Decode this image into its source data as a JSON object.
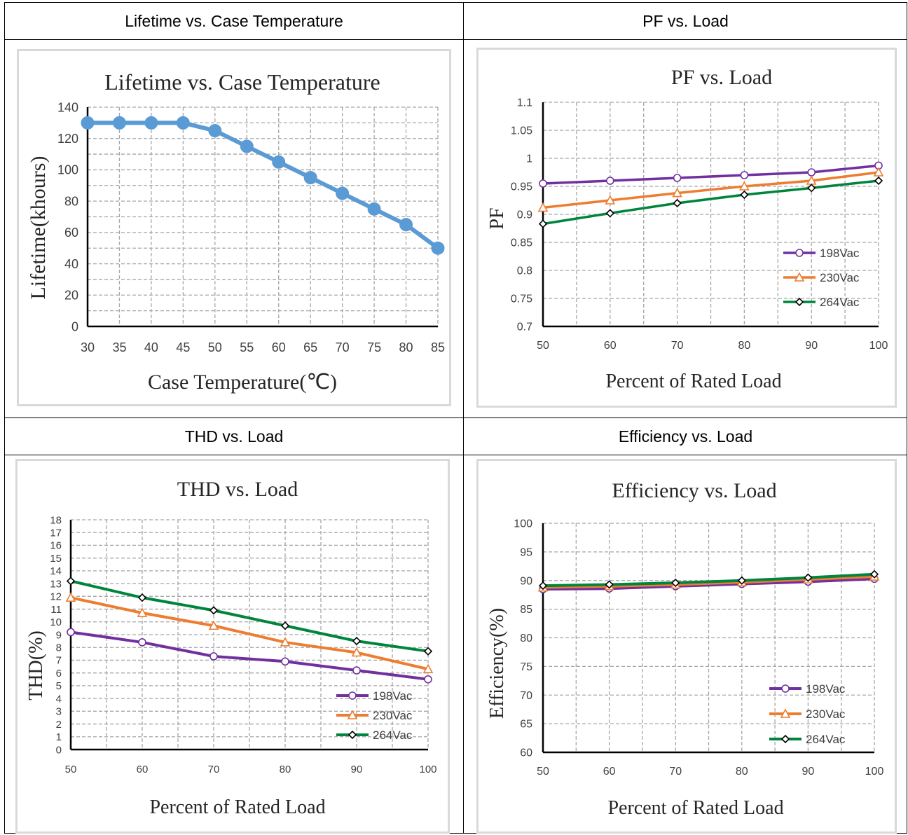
{
  "cells": [
    {
      "title": "Lifetime vs. Case Temperature"
    },
    {
      "title": "PF vs. Load"
    },
    {
      "title": "THD vs. Load"
    },
    {
      "title": "Efficiency vs. Load"
    }
  ],
  "chart_data": [
    {
      "type": "line",
      "title": "Lifetime vs. Case Temperature",
      "xlabel": "Case Temperature(℃)",
      "ylabel": "Lifetime(khours)",
      "x": [
        30,
        35,
        40,
        45,
        50,
        55,
        60,
        65,
        70,
        75,
        80,
        85
      ],
      "xlim": [
        30,
        85
      ],
      "ylim": [
        0,
        140
      ],
      "yticks": [
        0,
        20,
        40,
        60,
        80,
        100,
        120,
        140
      ],
      "grid": true,
      "series": [
        {
          "values": [
            130,
            130,
            130,
            130,
            125,
            115,
            105,
            95,
            85,
            75,
            65,
            50
          ],
          "color": "#5b9bd5",
          "marker": "filled-circle"
        }
      ]
    },
    {
      "type": "line",
      "title": "PF vs. Load",
      "xlabel": "Percent of Rated Load",
      "ylabel": "PF",
      "x": [
        50,
        60,
        70,
        80,
        90,
        100
      ],
      "xlim": [
        50,
        100
      ],
      "ylim": [
        0.7,
        1.1
      ],
      "yticks": [
        0.7,
        0.75,
        0.8,
        0.85,
        0.9,
        0.95,
        1,
        1.05,
        1.1
      ],
      "grid": true,
      "legend": "bottom-right",
      "series": [
        {
          "name": "198Vac",
          "values": [
            0.955,
            0.96,
            0.965,
            0.97,
            0.975,
            0.987
          ],
          "color": "#7030a0",
          "marker": "circle"
        },
        {
          "name": "230Vac",
          "values": [
            0.912,
            0.925,
            0.938,
            0.95,
            0.96,
            0.975
          ],
          "color": "#ed7d31",
          "marker": "triangle"
        },
        {
          "name": "264Vac",
          "values": [
            0.883,
            0.902,
            0.92,
            0.935,
            0.947,
            0.96
          ],
          "color": "#00853e",
          "marker": "diamond"
        }
      ]
    },
    {
      "type": "line",
      "title": "THD vs. Load",
      "xlabel": "Percent of Rated Load",
      "ylabel": "THD(%)",
      "x": [
        50,
        60,
        70,
        80,
        90,
        100
      ],
      "xlim": [
        50,
        100
      ],
      "ylim": [
        0,
        18
      ],
      "yticks": [
        0,
        1,
        2,
        3,
        4,
        5,
        6,
        7,
        8,
        9,
        10,
        11,
        12,
        13,
        14,
        15,
        16,
        17,
        18
      ],
      "grid": true,
      "legend": "bottom-right",
      "series": [
        {
          "name": "198Vac",
          "values": [
            9.2,
            8.4,
            7.3,
            6.9,
            6.2,
            5.5
          ],
          "color": "#7030a0",
          "marker": "circle"
        },
        {
          "name": "230Vac",
          "values": [
            11.9,
            10.7,
            9.7,
            8.4,
            7.6,
            6.3
          ],
          "color": "#ed7d31",
          "marker": "triangle"
        },
        {
          "name": "264Vac",
          "values": [
            13.2,
            11.9,
            10.9,
            9.7,
            8.5,
            7.7
          ],
          "color": "#00853e",
          "marker": "diamond"
        }
      ]
    },
    {
      "type": "line",
      "title": "Efficiency vs. Load",
      "xlabel": "Percent of Rated Load",
      "ylabel": "Efficiency(%)",
      "x": [
        50,
        60,
        70,
        80,
        90,
        100
      ],
      "xlim": [
        50,
        100
      ],
      "ylim": [
        60,
        100
      ],
      "yticks": [
        60,
        65,
        70,
        75,
        80,
        85,
        90,
        95,
        100
      ],
      "grid": true,
      "legend": "bottom-right",
      "series": [
        {
          "name": "198Vac",
          "values": [
            88.5,
            88.6,
            89.0,
            89.4,
            89.8,
            90.3
          ],
          "color": "#7030a0",
          "marker": "circle"
        },
        {
          "name": "230Vac",
          "values": [
            88.8,
            89.0,
            89.3,
            89.7,
            90.2,
            90.7
          ],
          "color": "#ed7d31",
          "marker": "triangle"
        },
        {
          "name": "264Vac",
          "values": [
            89.1,
            89.3,
            89.6,
            90.0,
            90.5,
            91.1
          ],
          "color": "#00853e",
          "marker": "diamond"
        }
      ]
    }
  ]
}
